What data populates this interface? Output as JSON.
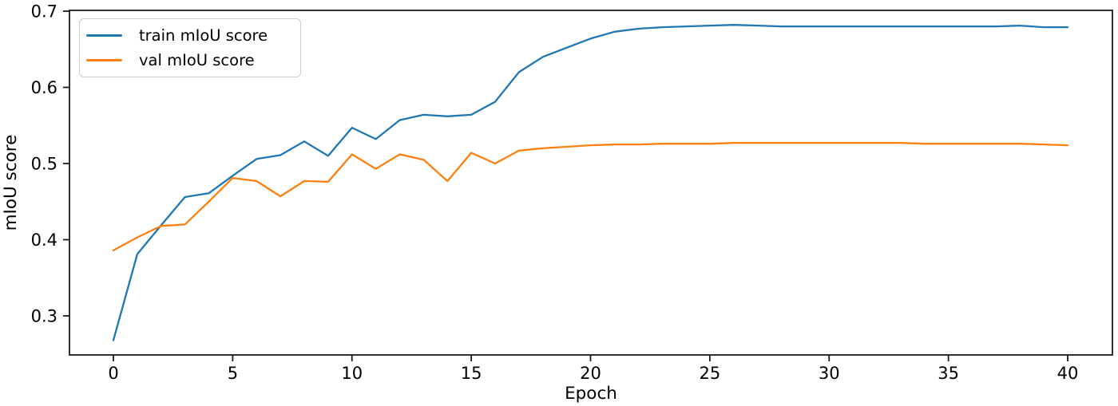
{
  "figure": {
    "background": "#ffffff",
    "axis_color": "#1a1a1a",
    "tick_label_color": "#000000"
  },
  "legend": {
    "position": "upper-left",
    "items": [
      {
        "label": "train mIoU score",
        "color": "#1f77b4"
      },
      {
        "label": "val mIoU score",
        "color": "#ff7f0e"
      }
    ]
  },
  "chart_data": {
    "type": "line",
    "title": "",
    "xlabel": "Epoch",
    "ylabel": "mIoU score",
    "xlim": [
      -2,
      42
    ],
    "ylim": [
      0.249,
      0.701
    ],
    "xticks": [
      0,
      5,
      10,
      15,
      20,
      25,
      30,
      35,
      40
    ],
    "yticks": [
      0.3,
      0.4,
      0.5,
      0.6,
      0.7
    ],
    "grid": false,
    "legend_position": "upper-left",
    "x": [
      0,
      1,
      2,
      3,
      4,
      5,
      6,
      7,
      8,
      9,
      10,
      11,
      12,
      13,
      14,
      15,
      16,
      17,
      18,
      19,
      20,
      21,
      22,
      23,
      24,
      25,
      26,
      27,
      28,
      29,
      30,
      31,
      32,
      33,
      34,
      35,
      36,
      37,
      38,
      39,
      40
    ],
    "series": [
      {
        "name": "train mIoU score",
        "color": "#1f77b4",
        "values": [
          0.268,
          0.381,
          0.419,
          0.456,
          0.461,
          0.484,
          0.506,
          0.511,
          0.529,
          0.51,
          0.547,
          0.532,
          0.557,
          0.564,
          0.562,
          0.564,
          0.581,
          0.62,
          0.64,
          0.652,
          0.664,
          0.673,
          0.677,
          0.679,
          0.68,
          0.681,
          0.682,
          0.681,
          0.68,
          0.68,
          0.68,
          0.68,
          0.68,
          0.68,
          0.68,
          0.68,
          0.68,
          0.68,
          0.681,
          0.679,
          0.679
        ]
      },
      {
        "name": "val mIoU score",
        "color": "#ff7f0e",
        "values": [
          0.386,
          0.403,
          0.418,
          0.42,
          0.45,
          0.481,
          0.477,
          0.457,
          0.477,
          0.476,
          0.512,
          0.493,
          0.512,
          0.505,
          0.477,
          0.514,
          0.5,
          0.517,
          0.52,
          0.522,
          0.524,
          0.525,
          0.525,
          0.526,
          0.526,
          0.526,
          0.527,
          0.527,
          0.527,
          0.527,
          0.527,
          0.527,
          0.527,
          0.527,
          0.526,
          0.526,
          0.526,
          0.526,
          0.526,
          0.525,
          0.524
        ]
      }
    ]
  }
}
